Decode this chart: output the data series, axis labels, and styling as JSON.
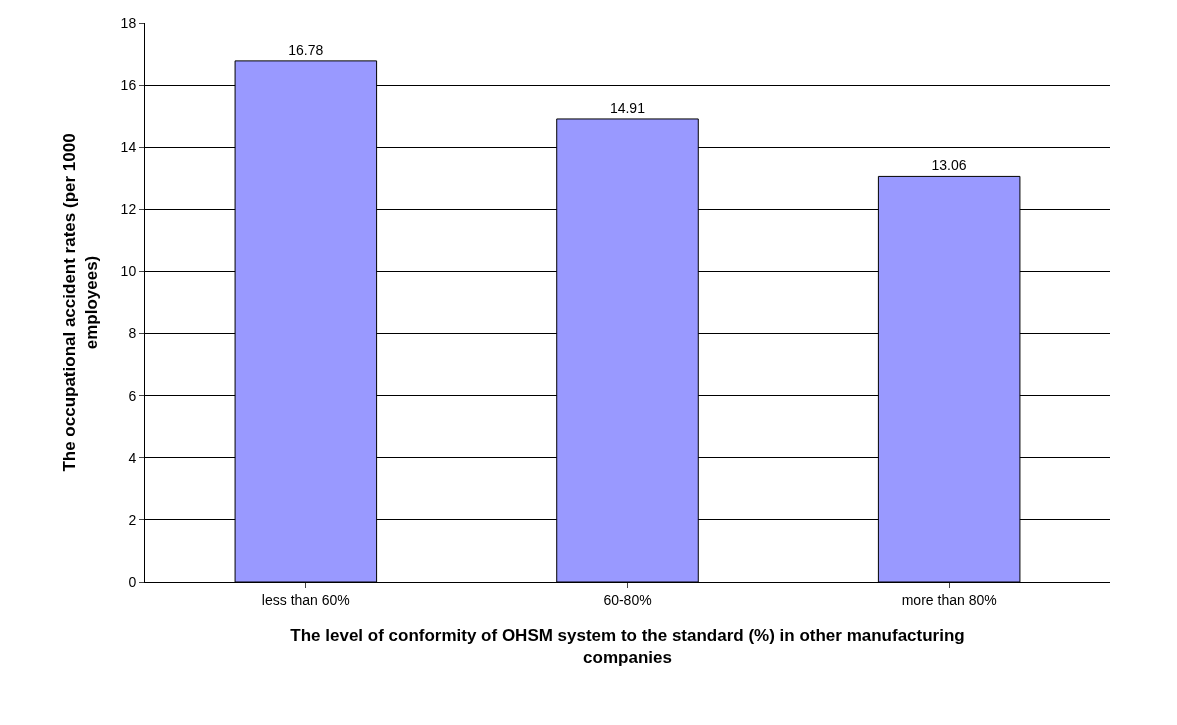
{
  "chart_data": {
    "type": "bar",
    "xlabel": "The level of conformity of OHSM system to the standard (%) in other manufacturing companies",
    "ylabel": "The occupational accident rates (per 1000 employees)",
    "categories": [
      "less than 60%",
      "60-80%",
      "more than 80%"
    ],
    "values": [
      16.78,
      14.91,
      13.06
    ],
    "color": "#9999ff",
    "ylim": [
      0,
      18
    ],
    "yticks": [
      0,
      2,
      4,
      6,
      8,
      10,
      12,
      14,
      16,
      18
    ],
    "grid": "y",
    "data_labels": true
  }
}
